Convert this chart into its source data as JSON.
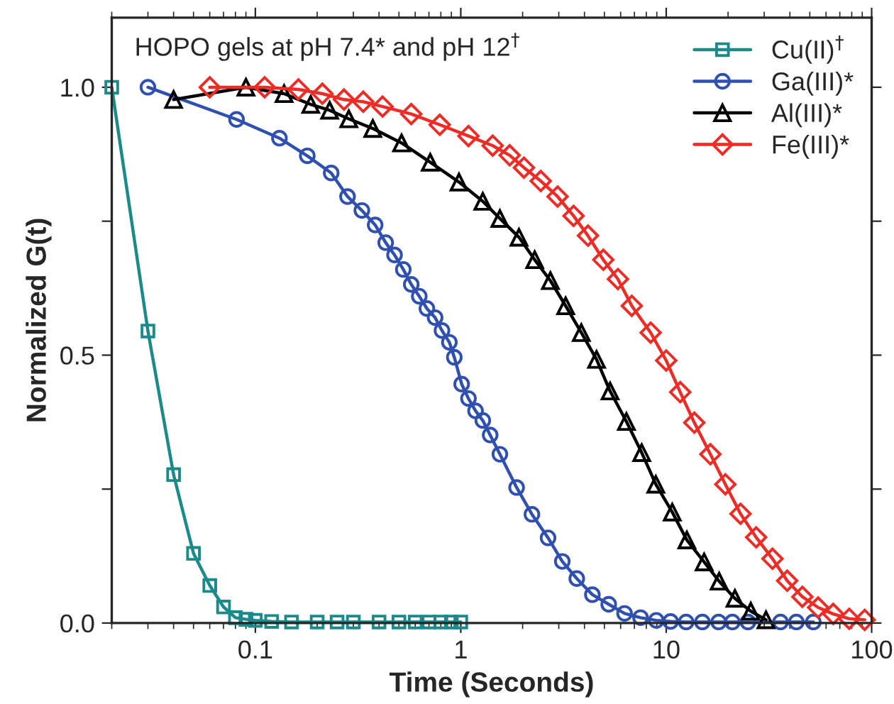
{
  "chart_data": {
    "type": "line",
    "title": "HOPO gels at pH 7.4* and pH 12$^{†}$",
    "xlabel": "Time (Seconds)",
    "ylabel": "Normalized G(t)",
    "log": "x",
    "xlim": [
      0.02,
      100
    ],
    "xticks": [
      0.1,
      1,
      10,
      100
    ],
    "ylim": [
      0,
      1.13
    ],
    "yticks": [
      {
        "value": 0,
        "label": "0.0"
      },
      {
        "value": 0.25,
        "label": null
      },
      {
        "value": 0.5,
        "label": "0.5"
      },
      {
        "value": 0.75,
        "label": null
      },
      {
        "value": 1.0,
        "label": "1.0"
      }
    ],
    "grid": false,
    "legend": "top right",
    "line_style": "solid",
    "series": [
      {
        "name": "Cu(II)$^{†}$",
        "color": "#1a8a8a",
        "marker": "square",
        "x": [
          0.02,
          0.03,
          0.04,
          0.05,
          0.06,
          0.07,
          0.08,
          0.09,
          0.1,
          0.12,
          0.15,
          0.2,
          0.25,
          0.3,
          0.4,
          0.5,
          0.6,
          0.7,
          0.8,
          0.9,
          1.0
        ],
        "values": [
          1.0,
          0.545,
          0.277,
          0.13,
          0.07,
          0.03,
          0.01,
          0.007,
          0.005,
          0.003,
          0.002,
          0.002,
          0.002,
          0.002,
          0.002,
          0.002,
          0.002,
          0.002,
          0.002,
          0.002,
          0.002
        ]
      },
      {
        "name": "Ga(III)*",
        "color": "#3050b0",
        "marker": "circle",
        "x": [
          0.03,
          0.081,
          0.131,
          0.179,
          0.234,
          0.281,
          0.33,
          0.383,
          0.431,
          0.476,
          0.525,
          0.574,
          0.628,
          0.684,
          0.75,
          0.81,
          0.88,
          0.93,
          1.01,
          1.09,
          1.18,
          1.28,
          1.39,
          1.55,
          1.87,
          2.22,
          2.66,
          3.12,
          3.67,
          4.37,
          5.25,
          6.27,
          7.5,
          8.95,
          10.5,
          12.5,
          15,
          18,
          21,
          25,
          36,
          43,
          52
        ],
        "values": [
          1.0,
          0.94,
          0.905,
          0.872,
          0.84,
          0.796,
          0.77,
          0.743,
          0.71,
          0.687,
          0.66,
          0.632,
          0.61,
          0.587,
          0.57,
          0.546,
          0.524,
          0.496,
          0.446,
          0.419,
          0.396,
          0.378,
          0.351,
          0.315,
          0.253,
          0.203,
          0.159,
          0.115,
          0.083,
          0.053,
          0.035,
          0.018,
          0.01,
          0.005,
          0.003,
          0.002,
          0.002,
          0.002,
          0.002,
          0.002,
          0.002,
          0.002,
          0.002
        ]
      },
      {
        "name": "Al(III)*",
        "color": "#000000",
        "marker": "triangle",
        "x": [
          0.04,
          0.09,
          0.138,
          0.186,
          0.23,
          0.285,
          0.373,
          0.515,
          0.71,
          0.98,
          1.28,
          1.55,
          1.92,
          2.29,
          2.73,
          3.24,
          3.86,
          4.58,
          5.33,
          6.4,
          7.6,
          8.9,
          10.7,
          12.6,
          15.3,
          18.1,
          21.6,
          25.8,
          30.6
        ],
        "values": [
          0.977,
          1.0,
          0.988,
          0.968,
          0.957,
          0.941,
          0.923,
          0.896,
          0.86,
          0.823,
          0.787,
          0.755,
          0.72,
          0.678,
          0.639,
          0.592,
          0.542,
          0.492,
          0.433,
          0.376,
          0.318,
          0.259,
          0.207,
          0.155,
          0.114,
          0.078,
          0.046,
          0.022,
          0.006
        ]
      },
      {
        "name": "Fe(III)*",
        "color": "#ee2b24",
        "marker": "diamond",
        "x": [
          0.06,
          0.111,
          0.162,
          0.212,
          0.27,
          0.335,
          0.416,
          0.574,
          0.79,
          1.09,
          1.43,
          1.73,
          2.03,
          2.45,
          2.96,
          3.54,
          4.16,
          4.94,
          5.82,
          6.8,
          8.4,
          10,
          11.7,
          13.7,
          16.4,
          19.4,
          23,
          27.4,
          32.9,
          38.8,
          46,
          54.9,
          65,
          77.8,
          92.5
        ],
        "values": [
          1.0,
          1.0,
          0.996,
          0.988,
          0.977,
          0.973,
          0.964,
          0.95,
          0.93,
          0.909,
          0.891,
          0.873,
          0.85,
          0.825,
          0.796,
          0.76,
          0.723,
          0.678,
          0.642,
          0.592,
          0.542,
          0.49,
          0.431,
          0.374,
          0.315,
          0.259,
          0.204,
          0.16,
          0.12,
          0.079,
          0.049,
          0.029,
          0.017,
          0.008,
          0.006
        ]
      }
    ]
  }
}
